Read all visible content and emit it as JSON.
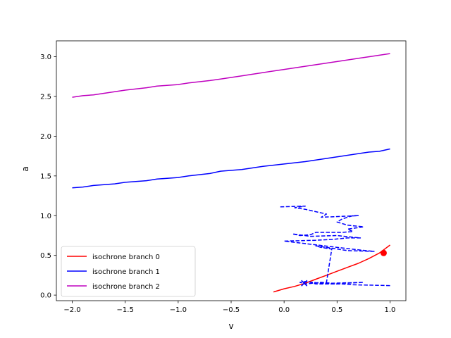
{
  "chart_data": {
    "type": "line",
    "title": "",
    "xlabel": "v",
    "ylabel": "a",
    "xlim": [
      -2.15,
      1.15
    ],
    "ylim": [
      -0.07,
      3.2
    ],
    "xticks": [
      -2.0,
      -1.5,
      -1.0,
      -0.5,
      0.0,
      0.5,
      1.0
    ],
    "xtick_labels": [
      "−2.0",
      "−1.5",
      "−1.0",
      "−0.5",
      "0.0",
      "0.5",
      "1.0"
    ],
    "yticks": [
      0.0,
      0.5,
      1.0,
      1.5,
      2.0,
      2.5,
      3.0
    ],
    "ytick_labels": [
      "0.0",
      "0.5",
      "1.0",
      "1.5",
      "2.0",
      "2.5",
      "3.0"
    ],
    "grid": false,
    "legend_position": "lower-left",
    "series": [
      {
        "name": "isochrone branch 0",
        "color": "#ff0000",
        "style": "solid",
        "x": [
          -0.1,
          0.0,
          0.1,
          0.2,
          0.3,
          0.4,
          0.5,
          0.6,
          0.7,
          0.8,
          0.9,
          1.0
        ],
        "y": [
          0.04,
          0.08,
          0.11,
          0.15,
          0.2,
          0.25,
          0.3,
          0.35,
          0.4,
          0.46,
          0.53,
          0.63
        ]
      },
      {
        "name": "isochrone branch 1",
        "color": "#0000ff",
        "style": "solid",
        "x": [
          -2.0,
          -1.9,
          -1.8,
          -1.6,
          -1.5,
          -1.3,
          -1.2,
          -1.0,
          -0.9,
          -0.7,
          -0.6,
          -0.4,
          -0.2,
          0.0,
          0.2,
          0.4,
          0.6,
          0.8,
          0.9,
          1.0
        ],
        "y": [
          1.35,
          1.36,
          1.38,
          1.4,
          1.42,
          1.44,
          1.46,
          1.48,
          1.5,
          1.53,
          1.56,
          1.58,
          1.62,
          1.65,
          1.68,
          1.72,
          1.76,
          1.8,
          1.81,
          1.84
        ]
      },
      {
        "name": "isochrone branch 2",
        "color": "#bf00bf",
        "style": "solid",
        "x": [
          -2.0,
          -1.9,
          -1.8,
          -1.6,
          -1.5,
          -1.3,
          -1.2,
          -1.0,
          -0.9,
          -0.7,
          -0.6,
          -0.4,
          -0.2,
          0.0,
          0.2,
          0.4,
          0.6,
          0.8,
          1.0
        ],
        "y": [
          2.49,
          2.51,
          2.52,
          2.56,
          2.58,
          2.61,
          2.63,
          2.65,
          2.67,
          2.7,
          2.72,
          2.76,
          2.8,
          2.84,
          2.88,
          2.92,
          2.96,
          3.0,
          3.04
        ]
      },
      {
        "color": "#0000ff",
        "style": "dashed",
        "x": [
          1.0,
          0.65,
          0.55,
          0.3,
          0.25,
          0.5,
          0.6,
          0.75,
          0.45,
          0.35,
          0.2,
          0.15,
          0.2,
          0.35,
          0.4,
          0.45,
          0.35,
          0.3,
          0.6,
          0.85,
          0.7,
          0.0,
          0.3,
          0.45,
          0.6,
          0.72,
          0.5,
          0.25,
          0.08,
          0.15,
          0.25,
          0.3,
          0.55,
          0.65,
          0.6,
          0.75,
          0.6,
          0.5,
          0.55,
          0.65,
          0.7,
          0.35,
          0.4,
          0.3,
          0.2,
          0.1,
          0.2,
          -0.05
        ],
        "y": [
          0.12,
          0.13,
          0.14,
          0.14,
          0.16,
          0.14,
          0.15,
          0.16,
          0.15,
          0.16,
          0.14,
          0.16,
          0.17,
          0.15,
          0.16,
          0.58,
          0.6,
          0.62,
          0.56,
          0.55,
          0.57,
          0.68,
          0.69,
          0.7,
          0.72,
          0.72,
          0.75,
          0.74,
          0.77,
          0.75,
          0.76,
          0.79,
          0.79,
          0.8,
          0.83,
          0.86,
          0.88,
          0.92,
          0.96,
          1.0,
          1.0,
          0.98,
          1.02,
          1.05,
          1.08,
          1.1,
          1.12,
          1.11
        ]
      }
    ],
    "markers": [
      {
        "type": "dot",
        "x": 0.94,
        "y": 0.53,
        "color": "#ff0000"
      },
      {
        "type": "x",
        "x": 0.19,
        "y": 0.15,
        "color": "#0000ff"
      }
    ]
  }
}
